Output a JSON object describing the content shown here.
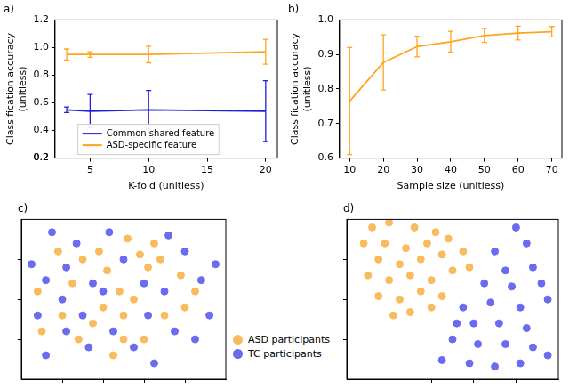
{
  "chart_data": [
    {
      "type": "line",
      "title": "a)",
      "xlabel": "K-fold (unitless)",
      "ylabel": [
        "Classification accuracy",
        "(unitless)"
      ],
      "x": [
        3,
        5,
        10,
        20
      ],
      "series": [
        {
          "name": "Common shared feature",
          "color": "#1f1fd8",
          "values": [
            0.55,
            0.54,
            0.55,
            0.54
          ],
          "errors": [
            0.02,
            0.12,
            0.14,
            0.22
          ]
        },
        {
          "name": "ASD-specific feature",
          "color": "#ffa41b",
          "values": [
            0.95,
            0.95,
            0.95,
            0.97
          ],
          "errors": [
            0.04,
            0.02,
            0.06,
            0.09
          ]
        }
      ],
      "xlim": [
        2,
        21
      ],
      "xticks": [
        5,
        10,
        15,
        20
      ],
      "ylim": [
        0.2,
        1.2
      ],
      "yticks": [
        0.2,
        0.4,
        0.6,
        0.8,
        {
          "value": 1,
          "label": "1.0"
        },
        0.2,
        1.2
      ],
      "grid": false,
      "legend": "bottom"
    },
    {
      "type": "line",
      "title": "b)",
      "xlabel": "Sample size (unitless)",
      "ylabel": [
        "Classification accuracy",
        "(unitless)"
      ],
      "x": [
        10,
        20,
        30,
        40,
        50,
        60,
        70
      ],
      "series": [
        {
          "name": "ASD-specific feature",
          "color": "#ffa41b",
          "values": [
            0.765,
            0.877,
            0.923,
            0.937,
            0.955,
            0.962,
            0.966
          ],
          "errors": [
            0.155,
            0.08,
            0.03,
            0.03,
            0.02,
            0.02,
            0.015
          ]
        }
      ],
      "xlim": [
        7,
        73
      ],
      "xticks": [
        10,
        20,
        30,
        40,
        50,
        60,
        70
      ],
      "ylim": [
        0.6,
        1.0
      ],
      "yticks": [
        0.6,
        0.7,
        0.8,
        0.9,
        {
          "value": 1,
          "label": "1.0"
        }
      ],
      "grid": false
    },
    {
      "type": "scatter",
      "title": "c)",
      "marker": "circle",
      "series": [
        {
          "name": "ASD participants",
          "color": "#f8bc5e",
          "x": [
            8,
            18,
            25,
            30,
            38,
            42,
            48,
            52,
            58,
            62,
            68,
            78,
            50,
            55,
            40,
            35,
            28,
            45,
            60,
            70,
            80,
            10,
            20,
            65,
            85,
            50
          ],
          "values": [
            55,
            80,
            60,
            75,
            80,
            68,
            55,
            88,
            78,
            70,
            75,
            65,
            40,
            50,
            45,
            35,
            25,
            15,
            25,
            40,
            45,
            30,
            40,
            85,
            55,
            25
          ]
        },
        {
          "name": "TC participants",
          "color": "#6b6bef",
          "x": [
            5,
            12,
            15,
            22,
            20,
            8,
            30,
            33,
            12,
            22,
            43,
            50,
            60,
            55,
            72,
            80,
            70,
            75,
            88,
            95,
            92,
            85,
            40,
            65,
            62,
            27,
            45,
            35
          ],
          "values": [
            72,
            62,
            92,
            70,
            50,
            40,
            40,
            20,
            15,
            30,
            92,
            75,
            60,
            20,
            90,
            80,
            55,
            30,
            62,
            72,
            40,
            25,
            55,
            10,
            40,
            85,
            30,
            60
          ]
        }
      ],
      "xlim": [
        0,
        100
      ],
      "xticks": [
        20,
        40,
        60,
        80
      ],
      "ylim": [
        0,
        100
      ],
      "yticks": [
        25,
        50,
        75
      ],
      "grid": false,
      "tick_labels": false,
      "legend": "bottom"
    },
    {
      "type": "scatter",
      "title": "d)",
      "marker": "circle",
      "series": [
        {
          "name": "ASD participants",
          "color": "#f8bc5e",
          "x": [
            12,
            20,
            32,
            42,
            8,
            18,
            28,
            38,
            48,
            15,
            25,
            35,
            45,
            55,
            10,
            20,
            30,
            40,
            50,
            58,
            15,
            25,
            35,
            45,
            30,
            40,
            22
          ],
          "values": [
            95,
            98,
            95,
            92,
            85,
            85,
            82,
            85,
            88,
            75,
            72,
            75,
            78,
            80,
            65,
            62,
            65,
            62,
            68,
            70,
            52,
            50,
            55,
            52,
            42,
            45,
            40
          ]
        },
        {
          "name": "TC participants",
          "color": "#6b6bef",
          "x": [
            80,
            85,
            70,
            75,
            88,
            65,
            78,
            92,
            55,
            68,
            82,
            95,
            60,
            72,
            85,
            50,
            62,
            75,
            88,
            45,
            58,
            70,
            82,
            95,
            52
          ],
          "values": [
            95,
            85,
            80,
            68,
            70,
            60,
            58,
            60,
            45,
            48,
            45,
            50,
            35,
            35,
            32,
            25,
            22,
            22,
            20,
            12,
            10,
            8,
            10,
            15,
            35
          ]
        }
      ],
      "xlim": [
        0,
        100
      ],
      "xticks": [
        20,
        40,
        60,
        80
      ],
      "ylim": [
        0,
        100
      ],
      "yticks": [
        25,
        50,
        75
      ],
      "grid": false,
      "tick_labels": false
    }
  ]
}
